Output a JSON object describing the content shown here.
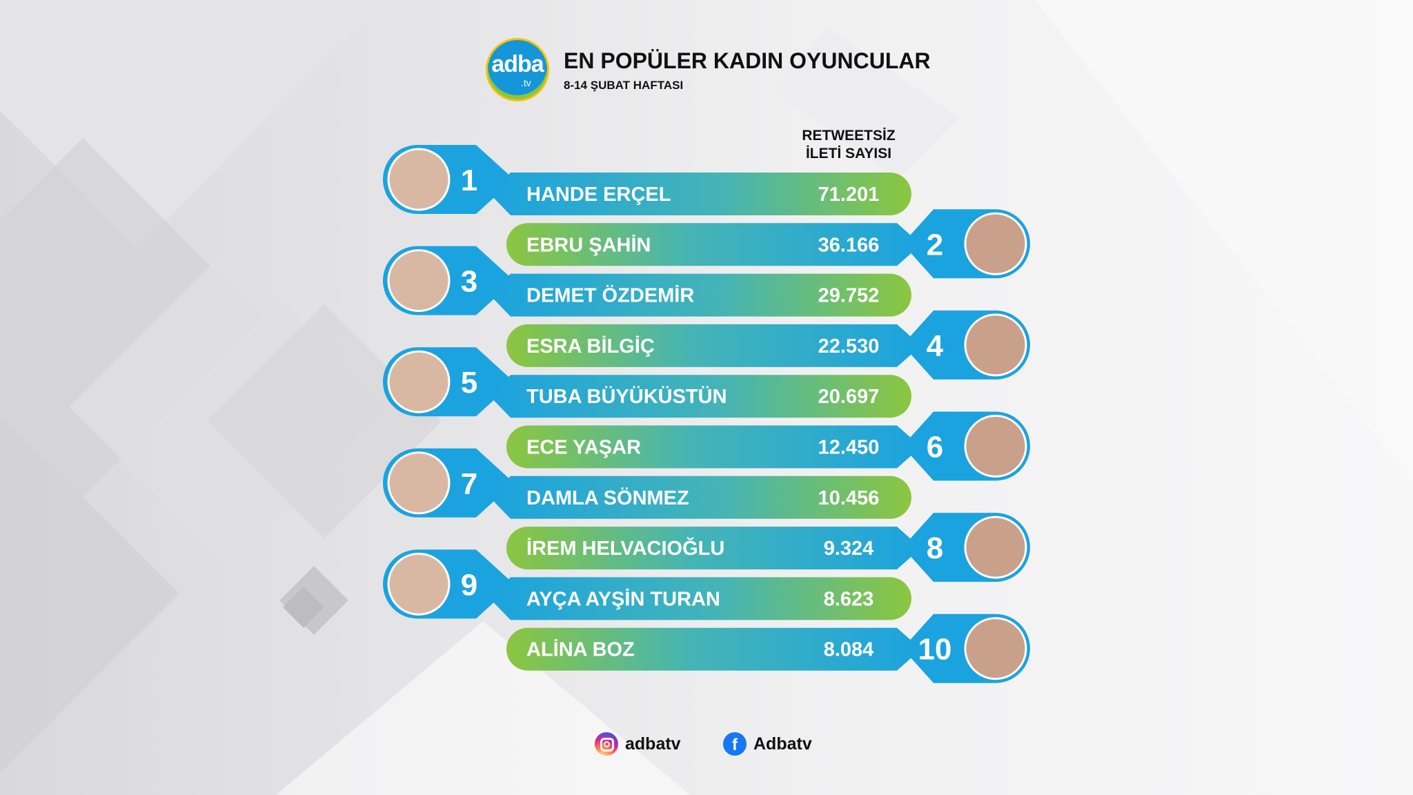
{
  "header": {
    "logo_text": "adba",
    "logo_sub": ".tv",
    "title": "EN POPÜLER KADIN OYUNCULAR",
    "subtitle": "8-14 ŞUBAT HAFTASI"
  },
  "column_header": {
    "line1": "RETWEETSİZ",
    "line2": "İLETİ SAYISI"
  },
  "colors": {
    "blue": "#1ba3df",
    "green": "#8cc63f",
    "text": "#ffffff"
  },
  "chart_data": {
    "type": "bar",
    "title": "EN POPÜLER KADIN OYUNCULAR",
    "subtitle": "8-14 ŞUBAT HAFTASI",
    "ylabel": "RETWEETSİZ İLETİ SAYISI",
    "categories": [
      "HANDE ERÇEL",
      "EBRU ŞAHİN",
      "DEMET ÖZDEMİR",
      "ESRA BİLGİÇ",
      "TUBA BÜYÜKÜSTÜN",
      "ECE YAŞAR",
      "DAMLA SÖNMEZ",
      "İREM HELVACIOĞLU",
      "AYÇA AYŞİN TURAN",
      "ALİNA BOZ"
    ],
    "ranks": [
      "1",
      "2",
      "3",
      "4",
      "5",
      "6",
      "7",
      "8",
      "9",
      "10"
    ],
    "values": [
      71201,
      36166,
      29752,
      22530,
      20697,
      12450,
      10456,
      9324,
      8623,
      8084
    ],
    "value_labels": [
      "71.201",
      "36.166",
      "29.752",
      "22.530",
      "20.697",
      "12.450",
      "10.456",
      "9.324",
      "8.623",
      "8.084"
    ]
  },
  "social": {
    "instagram": "adbatv",
    "facebook": "Adbatv",
    "facebook_glyph": "f"
  }
}
